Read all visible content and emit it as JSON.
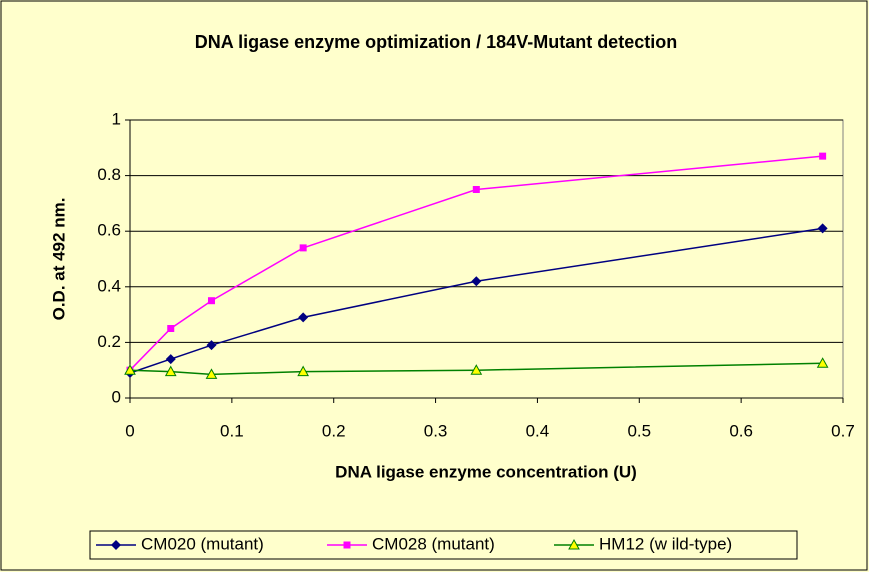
{
  "chart_data": {
    "type": "line",
    "title": "DNA ligase enzyme optimization / 184V-Mutant detection",
    "x_label": "DNA ligase enzyme concentration (U)",
    "y_label": "O.D. at 492 nm.",
    "x": [
      0,
      0.04,
      0.08,
      0.17,
      0.34,
      0.68
    ],
    "series": [
      {
        "name": "CM020 (mutant)",
        "color": "#000080",
        "marker": "diamond",
        "values": [
          0.09,
          0.14,
          0.19,
          0.29,
          0.42,
          0.61
        ]
      },
      {
        "name": "CM028 (mutant)",
        "color": "#ff00ff",
        "marker": "square",
        "values": [
          0.1,
          0.25,
          0.35,
          0.54,
          0.75,
          0.87
        ]
      },
      {
        "name": "HM12 (w ild-type)",
        "color": "#008000",
        "marker": "triangle",
        "values": [
          0.1,
          0.095,
          0.085,
          0.095,
          0.1,
          0.125
        ]
      }
    ],
    "xlim": [
      0,
      0.7
    ],
    "xticks": [
      0,
      0.1,
      0.2,
      0.3,
      0.4,
      0.5,
      0.6,
      0.7
    ],
    "ylim": [
      0,
      1
    ],
    "yticks": [
      0,
      0.2,
      0.4,
      0.6,
      0.8,
      1
    ],
    "grid": true,
    "legend": "bottom"
  }
}
